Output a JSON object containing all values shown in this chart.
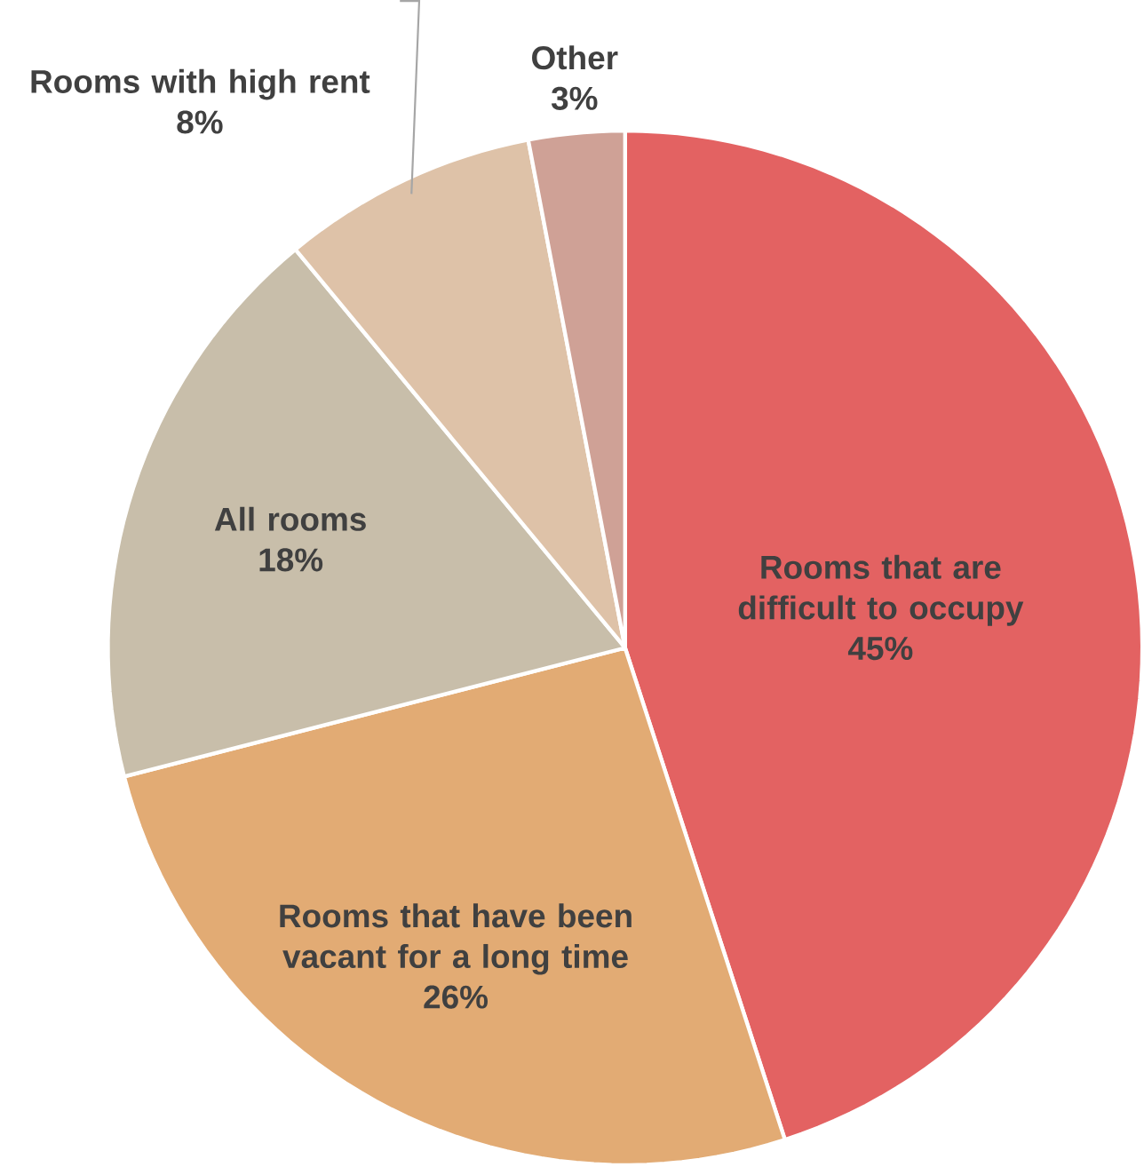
{
  "chart_data": {
    "type": "pie",
    "categories": [
      "Rooms that are difficult to occupy",
      "Rooms that have been vacant for a long time",
      "All rooms",
      "Rooms with high rent",
      "Other"
    ],
    "values": [
      45,
      26,
      18,
      8,
      3
    ],
    "colors": [
      "#e36262",
      "#e2ab74",
      "#c8beaa",
      "#dec2a8",
      "#cfa196"
    ],
    "value_labels": [
      "45%",
      "26%",
      "18%",
      "8%",
      "3%"
    ]
  }
}
